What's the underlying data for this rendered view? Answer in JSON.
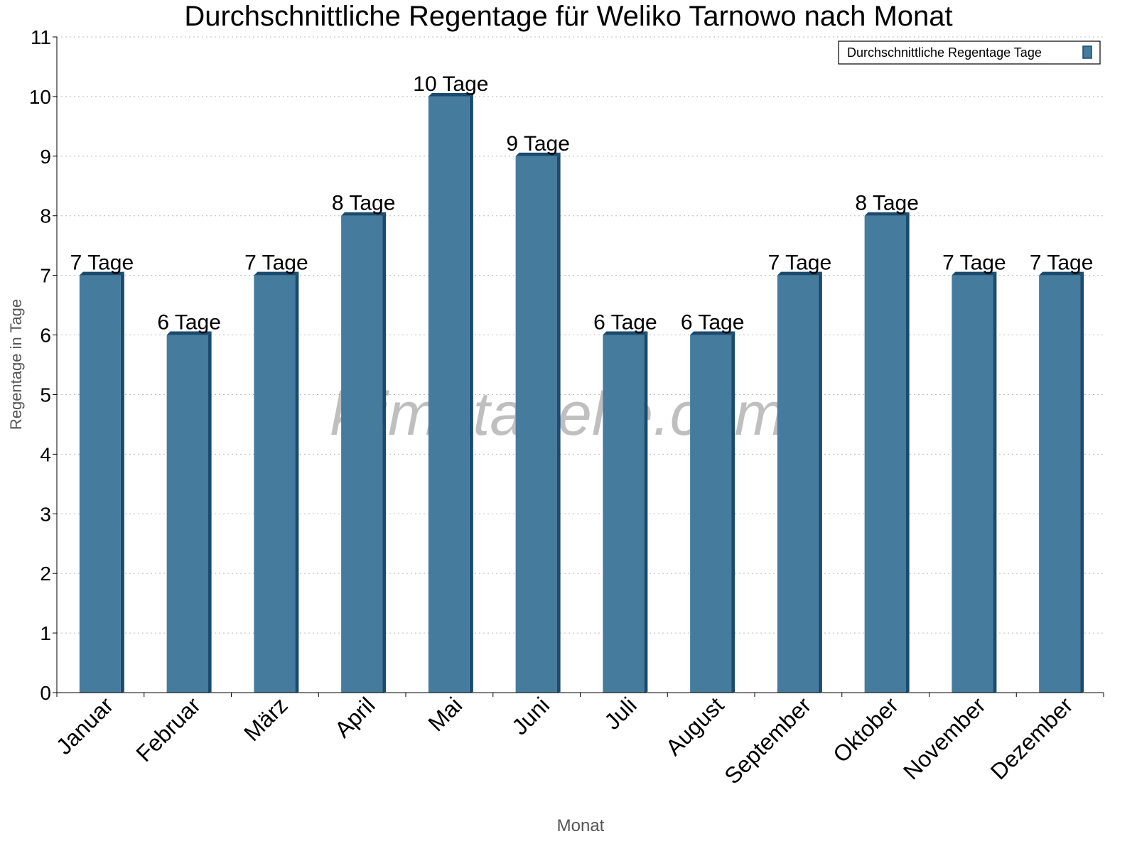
{
  "chart_data": {
    "type": "bar",
    "title": "Durchschnittliche Regentage für Weliko Tarnowo nach Monat",
    "xlabel": "Monat",
    "ylabel": "Regentage in Tage",
    "categories": [
      "Januar",
      "Februar",
      "März",
      "April",
      "Mai",
      "Juni",
      "Juli",
      "August",
      "September",
      "Oktober",
      "November",
      "Dezember"
    ],
    "series": [
      {
        "name": "Durchschnittliche Regentage Tage",
        "values": [
          7,
          6,
          7,
          8,
          10,
          9,
          6,
          6,
          7,
          8,
          7,
          7
        ],
        "color": "#457b9d"
      }
    ],
    "data_labels": [
      "7 Tage",
      "6 Tage",
      "7 Tage",
      "8 Tage",
      "10 Tage",
      "9 Tage",
      "6 Tage",
      "6 Tage",
      "7 Tage",
      "8 Tage",
      "7 Tage",
      "7 Tage"
    ],
    "ylim": [
      0,
      11
    ],
    "yticks": [
      0,
      1,
      2,
      3,
      4,
      5,
      6,
      7,
      8,
      9,
      10,
      11
    ],
    "grid": true,
    "legend_position": "top-right",
    "watermark": "klimatabelle.com"
  }
}
